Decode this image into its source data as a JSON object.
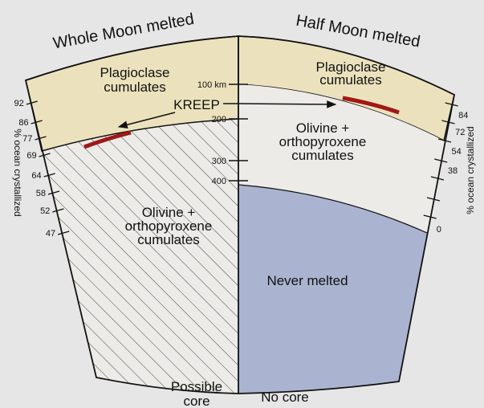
{
  "titles": {
    "left": "Whole Moon melted",
    "right": "Half Moon melted"
  },
  "labels": {
    "plag_left": [
      "Plagioclase",
      "cumulates"
    ],
    "plag_right": [
      "Plagioclase",
      "cumulates"
    ],
    "kreep": "KREEP",
    "oliv_left": [
      "Olivine +",
      "orthopyroxene",
      "cumulates"
    ],
    "oliv_right": [
      "Olivine +",
      "orthopyroxene",
      "cumulates"
    ],
    "never": "Never melted",
    "possible_core": [
      "Possible",
      "core"
    ],
    "no_core": "No core"
  },
  "depth_scale": [
    "100 km",
    "200",
    "300",
    "400"
  ],
  "left_scale": {
    "title": "% ocean crystallized",
    "values": [
      92,
      86,
      77,
      69,
      64,
      58,
      52,
      47
    ]
  },
  "right_scale": {
    "title": "% ocean crystallized",
    "values": [
      84,
      72,
      54,
      38,
      0
    ]
  }
}
